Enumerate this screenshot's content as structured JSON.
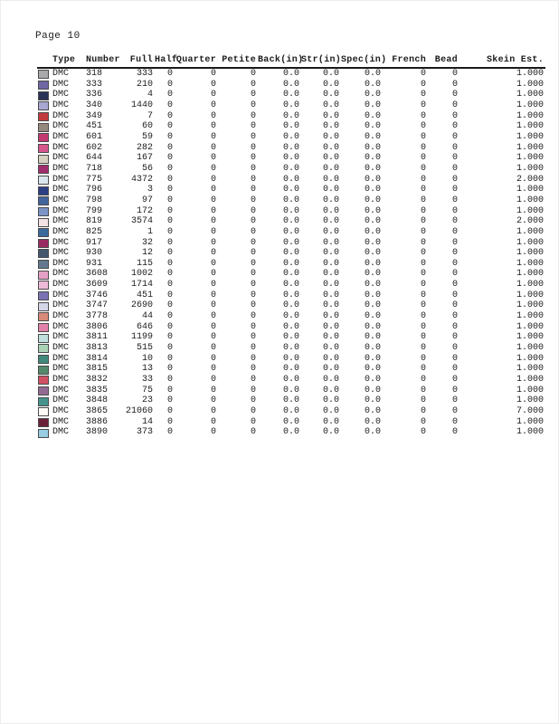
{
  "page": {
    "label": "Page 10"
  },
  "table": {
    "columns": [
      {
        "key": "swatch",
        "label": "",
        "align": "al"
      },
      {
        "key": "type",
        "label": "Type",
        "align": "al"
      },
      {
        "key": "number",
        "label": "Number",
        "align": "al"
      },
      {
        "key": "full",
        "label": "Full",
        "align": "ar"
      },
      {
        "key": "half",
        "label": "Half",
        "align": "ar"
      },
      {
        "key": "quarter",
        "label": "Quarter",
        "align": "ar"
      },
      {
        "key": "petite",
        "label": "Petite",
        "align": "ar"
      },
      {
        "key": "back",
        "label": "Back(in)",
        "align": "ar"
      },
      {
        "key": "str",
        "label": "Str(in)",
        "align": "ar"
      },
      {
        "key": "spec",
        "label": "Spec(in)",
        "align": "ar"
      },
      {
        "key": "french",
        "label": "French",
        "align": "ar"
      },
      {
        "key": "bead",
        "label": "Bead",
        "align": "ar"
      },
      {
        "key": "skein",
        "label": "Skein Est.",
        "align": "ar"
      }
    ],
    "rows": [
      {
        "color": "#a9a9ab",
        "type": "DMC",
        "number": "318",
        "full": "333",
        "half": "0",
        "quarter": "0",
        "petite": "0",
        "back": "0.0",
        "str": "0.0",
        "spec": "0.0",
        "french": "0",
        "bead": "0",
        "skein": "1.000"
      },
      {
        "color": "#6f66a5",
        "type": "DMC",
        "number": "333",
        "full": "210",
        "half": "0",
        "quarter": "0",
        "petite": "0",
        "back": "0.0",
        "str": "0.0",
        "spec": "0.0",
        "french": "0",
        "bead": "0",
        "skein": "1.000"
      },
      {
        "color": "#2a3456",
        "type": "DMC",
        "number": "336",
        "full": "4",
        "half": "0",
        "quarter": "0",
        "petite": "0",
        "back": "0.0",
        "str": "0.0",
        "spec": "0.0",
        "french": "0",
        "bead": "0",
        "skein": "1.000"
      },
      {
        "color": "#a9a8d3",
        "type": "DMC",
        "number": "340",
        "full": "1440",
        "half": "0",
        "quarter": "0",
        "petite": "0",
        "back": "0.0",
        "str": "0.0",
        "spec": "0.0",
        "french": "0",
        "bead": "0",
        "skein": "1.000"
      },
      {
        "color": "#c13a3d",
        "type": "DMC",
        "number": "349",
        "full": "7",
        "half": "0",
        "quarter": "0",
        "petite": "0",
        "back": "0.0",
        "str": "0.0",
        "spec": "0.0",
        "french": "0",
        "bead": "0",
        "skein": "1.000"
      },
      {
        "color": "#95897e",
        "type": "DMC",
        "number": "451",
        "full": "60",
        "half": "0",
        "quarter": "0",
        "petite": "0",
        "back": "0.0",
        "str": "0.0",
        "spec": "0.0",
        "french": "0",
        "bead": "0",
        "skein": "1.000"
      },
      {
        "color": "#c33a71",
        "type": "DMC",
        "number": "601",
        "full": "59",
        "half": "0",
        "quarter": "0",
        "petite": "0",
        "back": "0.0",
        "str": "0.0",
        "spec": "0.0",
        "french": "0",
        "bead": "0",
        "skein": "1.000"
      },
      {
        "color": "#d5578c",
        "type": "DMC",
        "number": "602",
        "full": "282",
        "half": "0",
        "quarter": "0",
        "petite": "0",
        "back": "0.0",
        "str": "0.0",
        "spec": "0.0",
        "french": "0",
        "bead": "0",
        "skein": "1.000"
      },
      {
        "color": "#d5d0bf",
        "type": "DMC",
        "number": "644",
        "full": "167",
        "half": "0",
        "quarter": "0",
        "petite": "0",
        "back": "0.0",
        "str": "0.0",
        "spec": "0.0",
        "french": "0",
        "bead": "0",
        "skein": "1.000"
      },
      {
        "color": "#a12d6e",
        "type": "DMC",
        "number": "718",
        "full": "56",
        "half": "0",
        "quarter": "0",
        "petite": "0",
        "back": "0.0",
        "str": "0.0",
        "spec": "0.0",
        "french": "0",
        "bead": "0",
        "skein": "1.000"
      },
      {
        "color": "#dbe7ee",
        "type": "DMC",
        "number": "775",
        "full": "4372",
        "half": "0",
        "quarter": "0",
        "petite": "0",
        "back": "0.0",
        "str": "0.0",
        "spec": "0.0",
        "french": "0",
        "bead": "0",
        "skein": "2.000"
      },
      {
        "color": "#2c3e84",
        "type": "DMC",
        "number": "796",
        "full": "3",
        "half": "0",
        "quarter": "0",
        "petite": "0",
        "back": "0.0",
        "str": "0.0",
        "spec": "0.0",
        "french": "0",
        "bead": "0",
        "skein": "1.000"
      },
      {
        "color": "#43659e",
        "type": "DMC",
        "number": "798",
        "full": "97",
        "half": "0",
        "quarter": "0",
        "petite": "0",
        "back": "0.0",
        "str": "0.0",
        "spec": "0.0",
        "french": "0",
        "bead": "0",
        "skein": "1.000"
      },
      {
        "color": "#7b95c7",
        "type": "DMC",
        "number": "799",
        "full": "172",
        "half": "0",
        "quarter": "0",
        "petite": "0",
        "back": "0.0",
        "str": "0.0",
        "spec": "0.0",
        "french": "0",
        "bead": "0",
        "skein": "1.000"
      },
      {
        "color": "#f3e3e5",
        "type": "DMC",
        "number": "819",
        "full": "3574",
        "half": "0",
        "quarter": "0",
        "petite": "0",
        "back": "0.0",
        "str": "0.0",
        "spec": "0.0",
        "french": "0",
        "bead": "0",
        "skein": "2.000"
      },
      {
        "color": "#3a699e",
        "type": "DMC",
        "number": "825",
        "full": "1",
        "half": "0",
        "quarter": "0",
        "petite": "0",
        "back": "0.0",
        "str": "0.0",
        "spec": "0.0",
        "french": "0",
        "bead": "0",
        "skein": "1.000"
      },
      {
        "color": "#992a61",
        "type": "DMC",
        "number": "917",
        "full": "32",
        "half": "0",
        "quarter": "0",
        "petite": "0",
        "back": "0.0",
        "str": "0.0",
        "spec": "0.0",
        "french": "0",
        "bead": "0",
        "skein": "1.000"
      },
      {
        "color": "#43586e",
        "type": "DMC",
        "number": "930",
        "full": "12",
        "half": "0",
        "quarter": "0",
        "petite": "0",
        "back": "0.0",
        "str": "0.0",
        "spec": "0.0",
        "french": "0",
        "bead": "0",
        "skein": "1.000"
      },
      {
        "color": "#64798f",
        "type": "DMC",
        "number": "931",
        "full": "115",
        "half": "0",
        "quarter": "0",
        "petite": "0",
        "back": "0.0",
        "str": "0.0",
        "spec": "0.0",
        "french": "0",
        "bead": "0",
        "skein": "1.000"
      },
      {
        "color": "#e49fc5",
        "type": "DMC",
        "number": "3608",
        "full": "1002",
        "half": "0",
        "quarter": "0",
        "petite": "0",
        "back": "0.0",
        "str": "0.0",
        "spec": "0.0",
        "french": "0",
        "bead": "0",
        "skein": "1.000"
      },
      {
        "color": "#edbad7",
        "type": "DMC",
        "number": "3609",
        "full": "1714",
        "half": "0",
        "quarter": "0",
        "petite": "0",
        "back": "0.0",
        "str": "0.0",
        "spec": "0.0",
        "french": "0",
        "bead": "0",
        "skein": "1.000"
      },
      {
        "color": "#7a73b3",
        "type": "DMC",
        "number": "3746",
        "full": "451",
        "half": "0",
        "quarter": "0",
        "petite": "0",
        "back": "0.0",
        "str": "0.0",
        "spec": "0.0",
        "french": "0",
        "bead": "0",
        "skein": "1.000"
      },
      {
        "color": "#d3d7e8",
        "type": "DMC",
        "number": "3747",
        "full": "2690",
        "half": "0",
        "quarter": "0",
        "petite": "0",
        "back": "0.0",
        "str": "0.0",
        "spec": "0.0",
        "french": "0",
        "bead": "0",
        "skein": "1.000"
      },
      {
        "color": "#d78a77",
        "type": "DMC",
        "number": "3778",
        "full": "44",
        "half": "0",
        "quarter": "0",
        "petite": "0",
        "back": "0.0",
        "str": "0.0",
        "spec": "0.0",
        "french": "0",
        "bead": "0",
        "skein": "1.000"
      },
      {
        "color": "#e282ab",
        "type": "DMC",
        "number": "3806",
        "full": "646",
        "half": "0",
        "quarter": "0",
        "petite": "0",
        "back": "0.0",
        "str": "0.0",
        "spec": "0.0",
        "french": "0",
        "bead": "0",
        "skein": "1.000"
      },
      {
        "color": "#bfe0dd",
        "type": "DMC",
        "number": "3811",
        "full": "1199",
        "half": "0",
        "quarter": "0",
        "petite": "0",
        "back": "0.0",
        "str": "0.0",
        "spec": "0.0",
        "french": "0",
        "bead": "0",
        "skein": "1.000"
      },
      {
        "color": "#aad2b5",
        "type": "DMC",
        "number": "3813",
        "full": "515",
        "half": "0",
        "quarter": "0",
        "petite": "0",
        "back": "0.0",
        "str": "0.0",
        "spec": "0.0",
        "french": "0",
        "bead": "0",
        "skein": "1.000"
      },
      {
        "color": "#41897b",
        "type": "DMC",
        "number": "3814",
        "full": "10",
        "half": "0",
        "quarter": "0",
        "petite": "0",
        "back": "0.0",
        "str": "0.0",
        "spec": "0.0",
        "french": "0",
        "bead": "0",
        "skein": "1.000"
      },
      {
        "color": "#568a6c",
        "type": "DMC",
        "number": "3815",
        "full": "13",
        "half": "0",
        "quarter": "0",
        "petite": "0",
        "back": "0.0",
        "str": "0.0",
        "spec": "0.0",
        "french": "0",
        "bead": "0",
        "skein": "1.000"
      },
      {
        "color": "#d05064",
        "type": "DMC",
        "number": "3832",
        "full": "33",
        "half": "0",
        "quarter": "0",
        "petite": "0",
        "back": "0.0",
        "str": "0.0",
        "spec": "0.0",
        "french": "0",
        "bead": "0",
        "skein": "1.000"
      },
      {
        "color": "#936a92",
        "type": "DMC",
        "number": "3835",
        "full": "75",
        "half": "0",
        "quarter": "0",
        "petite": "0",
        "back": "0.0",
        "str": "0.0",
        "spec": "0.0",
        "french": "0",
        "bead": "0",
        "skein": "1.000"
      },
      {
        "color": "#44948d",
        "type": "DMC",
        "number": "3848",
        "full": "23",
        "half": "0",
        "quarter": "0",
        "petite": "0",
        "back": "0.0",
        "str": "0.0",
        "spec": "0.0",
        "french": "0",
        "bead": "0",
        "skein": "1.000"
      },
      {
        "color": "#fcfbf7",
        "type": "DMC",
        "number": "3865",
        "full": "21060",
        "half": "0",
        "quarter": "0",
        "petite": "0",
        "back": "0.0",
        "str": "0.0",
        "spec": "0.0",
        "french": "0",
        "bead": "0",
        "skein": "7.000"
      },
      {
        "color": "#682139",
        "type": "DMC",
        "number": "3886",
        "full": "14",
        "half": "0",
        "quarter": "0",
        "petite": "0",
        "back": "0.0",
        "str": "0.0",
        "spec": "0.0",
        "french": "0",
        "bead": "0",
        "skein": "1.000"
      },
      {
        "color": "#97cde1",
        "type": "DMC",
        "number": "3890",
        "full": "373",
        "half": "0",
        "quarter": "0",
        "petite": "0",
        "back": "0.0",
        "str": "0.0",
        "spec": "0.0",
        "french": "0",
        "bead": "0",
        "skein": "1.000"
      }
    ]
  }
}
